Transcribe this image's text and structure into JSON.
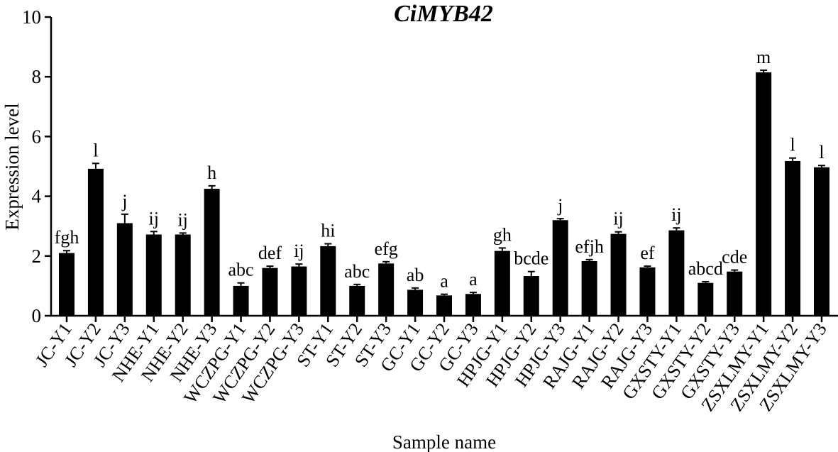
{
  "chart_data": {
    "type": "bar",
    "title": "CiMYB42",
    "xlabel": "Sample name",
    "ylabel": "Expression level",
    "ylim": [
      0,
      10
    ],
    "yticks": [
      0,
      2,
      4,
      6,
      8,
      10
    ],
    "grid": false,
    "legend": "none",
    "bar_color": "#000000",
    "categories": [
      "JC-Y1",
      "JC-Y2",
      "JC-Y3",
      "NHE-Y1",
      "NHE-Y2",
      "NHE-Y3",
      "WCZPG-Y1",
      "WCZPG-Y2",
      "WCZPG-Y3",
      "ST-Y1",
      "ST-Y2",
      "ST-Y3",
      "GC-Y1",
      "GC-Y2",
      "GC-Y3",
      "HPJG-Y1",
      "HPJG-Y2",
      "HPJG-Y3",
      "RAJG-Y1",
      "RAJG-Y2",
      "RAJG-Y3",
      "GXSTY-Y1",
      "GXSTY-Y2",
      "GXSTY-Y3",
      "ZSXLMY-Y1",
      "ZSXLMY-Y2",
      "ZSXLMY-Y3"
    ],
    "values": [
      2.1,
      4.92,
      3.1,
      2.72,
      2.72,
      4.25,
      1.0,
      1.6,
      1.65,
      2.33,
      1.0,
      1.75,
      0.87,
      0.68,
      0.73,
      2.17,
      1.33,
      3.2,
      1.83,
      2.74,
      1.62,
      2.86,
      1.1,
      1.48,
      8.15,
      5.18,
      4.97
    ],
    "errors": [
      0.08,
      0.18,
      0.3,
      0.1,
      0.05,
      0.1,
      0.1,
      0.06,
      0.08,
      0.08,
      0.05,
      0.06,
      0.06,
      0.04,
      0.05,
      0.1,
      0.15,
      0.05,
      0.05,
      0.07,
      0.04,
      0.08,
      0.04,
      0.05,
      0.07,
      0.1,
      0.06
    ],
    "significance": [
      "fgh",
      "l",
      "j",
      "ij",
      "ij",
      "h",
      "abc",
      "def",
      "ij",
      "hi",
      "abc",
      "efg",
      "ab",
      "a",
      "a",
      "gh",
      "bcde",
      "j",
      "efjh",
      "ij",
      "ef",
      "ij",
      "abcd",
      "cde",
      "m",
      "l",
      "l"
    ]
  }
}
